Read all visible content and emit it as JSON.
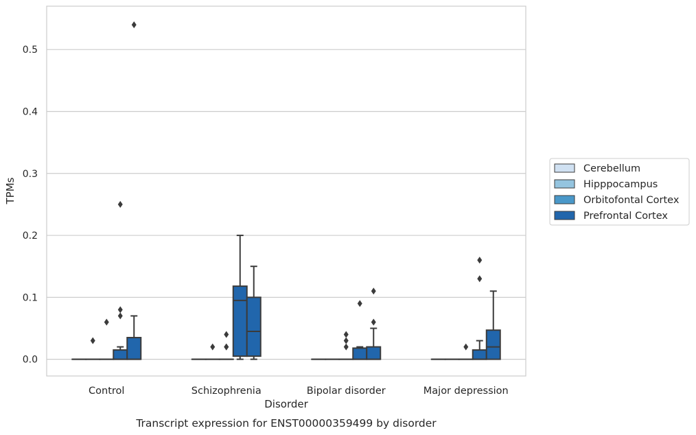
{
  "chart_data": {
    "type": "box",
    "caption": "Transcript expression for ENST00000359499 by disorder",
    "xlabel": "Disorder",
    "ylabel": "TPMs",
    "ylim": [
      -0.027,
      0.57
    ],
    "yticks": [
      0.0,
      0.1,
      0.2,
      0.3,
      0.4,
      0.5
    ],
    "ytick_labels": [
      "0.0",
      "0.1",
      "0.2",
      "0.3",
      "0.4",
      "0.5"
    ],
    "grid": "horizontal",
    "legend_position": "right",
    "categories": [
      "Control",
      "Schizophrenia",
      "Bipolar disorder",
      "Major depression"
    ],
    "series": [
      {
        "name": "Cerebellum",
        "color": "#d0e1f2",
        "boxes": [
          {
            "min": 0,
            "q1": 0,
            "median": 0,
            "q3": 0,
            "max": 0,
            "outliers": []
          },
          {
            "min": 0,
            "q1": 0,
            "median": 0,
            "q3": 0,
            "max": 0,
            "outliers": []
          },
          {
            "min": 0,
            "q1": 0,
            "median": 0,
            "q3": 0,
            "max": 0,
            "outliers": []
          },
          {
            "min": 0,
            "q1": 0,
            "median": 0,
            "q3": 0,
            "max": 0,
            "outliers": []
          }
        ]
      },
      {
        "name": "Hipppocampus",
        "color": "#94c4df",
        "boxes": [
          {
            "min": 0,
            "q1": 0,
            "median": 0,
            "q3": 0,
            "max": 0,
            "outliers": [
              0.03
            ]
          },
          {
            "min": 0,
            "q1": 0,
            "median": 0,
            "q3": 0,
            "max": 0,
            "outliers": [
              0.02
            ]
          },
          {
            "min": 0,
            "q1": 0,
            "median": 0,
            "q3": 0,
            "max": 0,
            "outliers": []
          },
          {
            "min": 0,
            "q1": 0,
            "median": 0,
            "q3": 0,
            "max": 0,
            "outliers": []
          }
        ]
      },
      {
        "name": "Orbitofontal Cortex",
        "color": "#4a98c9",
        "boxes": [
          {
            "min": 0,
            "q1": 0,
            "median": 0,
            "q3": 0,
            "max": 0,
            "outliers": [
              0.06
            ]
          },
          {
            "min": 0,
            "q1": 0,
            "median": 0,
            "q3": 0,
            "max": 0,
            "outliers": [
              0.02,
              0.04,
              0.02
            ]
          },
          {
            "min": 0,
            "q1": 0,
            "median": 0,
            "q3": 0,
            "max": 0,
            "outliers": [
              0.02,
              0.03,
              0.04
            ]
          },
          {
            "min": 0,
            "q1": 0,
            "median": 0,
            "q3": 0,
            "max": 0,
            "outliers": [
              0.02
            ]
          }
        ]
      },
      {
        "name": "Prefrontal Cortex",
        "color": "#2166ac",
        "boxes": [
          {
            "min": 0,
            "q1": 0,
            "median": 0,
            "q3": 0.015,
            "max": 0.02,
            "outliers": [
              0.07,
              0.08,
              0.25
            ]
          },
          {
            "min": 0,
            "q1": 0.005,
            "median": 0.095,
            "q3": 0.118,
            "max": 0.2,
            "outliers": []
          },
          {
            "min": 0,
            "q1": 0,
            "median": 0,
            "q3": 0.018,
            "max": 0.02,
            "outliers": [
              0.09
            ]
          },
          {
            "min": 0,
            "q1": 0,
            "median": 0,
            "q3": 0.015,
            "max": 0.03,
            "outliers": [
              0.13,
              0.16
            ]
          }
        ]
      },
      {
        "name": "",
        "color": "#2166ac",
        "boxes": [
          {
            "min": 0,
            "q1": 0,
            "median": 0,
            "q3": 0.035,
            "max": 0.07,
            "outliers": [
              0.54
            ]
          },
          {
            "min": 0,
            "q1": 0.005,
            "median": 0.045,
            "q3": 0.1,
            "max": 0.15,
            "outliers": []
          },
          {
            "min": 0,
            "q1": 0,
            "median": 0,
            "q3": 0.02,
            "max": 0.05,
            "outliers": [
              0.06,
              0.11
            ]
          },
          {
            "min": 0,
            "q1": 0,
            "median": 0.02,
            "q3": 0.047,
            "max": 0.11,
            "outliers": []
          }
        ]
      }
    ]
  }
}
